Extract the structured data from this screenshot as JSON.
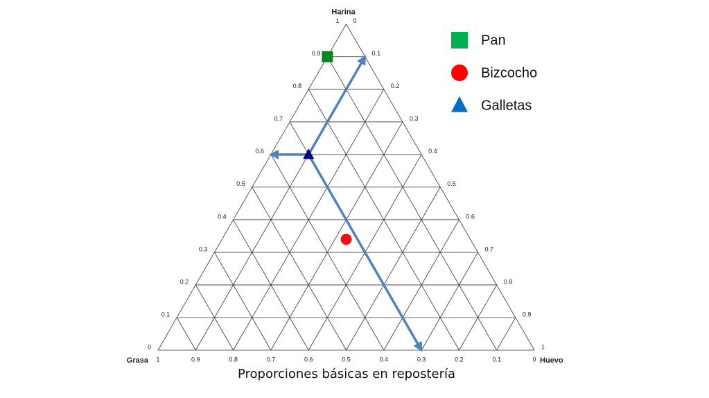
{
  "chart_data": {
    "type": "ternary",
    "title": "Proporciones básicas en repostería",
    "axes": [
      {
        "name": "Harina",
        "ticks": [
          0,
          0.1,
          0.2,
          0.3,
          0.4,
          0.5,
          0.6,
          0.7,
          0.8,
          0.9,
          1
        ]
      },
      {
        "name": "Grasa",
        "ticks": [
          0,
          0.1,
          0.2,
          0.3,
          0.4,
          0.5,
          0.6,
          0.7,
          0.8,
          0.9,
          1
        ]
      },
      {
        "name": "Huevo",
        "ticks": [
          0,
          0.1,
          0.2,
          0.3,
          0.4,
          0.5,
          0.6,
          0.7,
          0.8,
          0.9,
          1
        ]
      }
    ],
    "grid": true,
    "series": [
      {
        "name": "Pan",
        "marker": "square",
        "color": "#008a1e",
        "legend_color": "#00b050",
        "values": [
          0.9,
          0.1,
          0
        ]
      },
      {
        "name": "Bizcocho",
        "marker": "circle",
        "color": "#ee1111",
        "legend_color": "#ff0000",
        "values": [
          0.34,
          0.33,
          0.33
        ]
      },
      {
        "name": "Galletas",
        "marker": "triangle",
        "color": "#000080",
        "legend_color": "#0070c0",
        "values": [
          0.6,
          0.3,
          0.1
        ],
        "guides": true
      }
    ]
  }
}
